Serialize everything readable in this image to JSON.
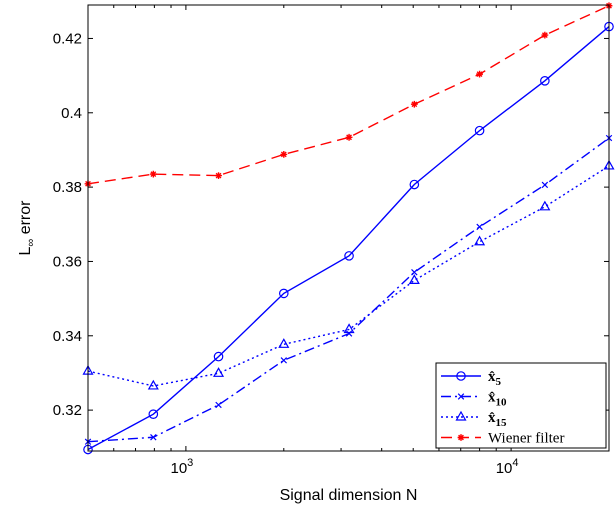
{
  "chart_data": {
    "type": "line",
    "xlabel": "Signal dimension N",
    "ylabel_main": "L",
    "ylabel_sub": "∞",
    "ylabel_rest": " error",
    "xscale": "log",
    "xlim": [
      500,
      20000
    ],
    "ylim": [
      0.309,
      0.429
    ],
    "x_ticks": [
      {
        "value": 1000,
        "base": "10",
        "exp": "3"
      },
      {
        "value": 10000,
        "base": "10",
        "exp": "4"
      }
    ],
    "y_ticks": [
      {
        "value": 0.32,
        "label": "0.32"
      },
      {
        "value": 0.34,
        "label": "0.34"
      },
      {
        "value": 0.36,
        "label": "0.36"
      },
      {
        "value": 0.38,
        "label": "0.38"
      },
      {
        "value": 0.4,
        "label": "0.4"
      },
      {
        "value": 0.42,
        "label": "0.42"
      }
    ],
    "grid": false,
    "legend_position": "bottom-right",
    "x": [
      500,
      794,
      1260,
      2000,
      3175,
      5040,
      8000,
      12700,
      20000
    ],
    "series": [
      {
        "name": "x̂5",
        "legend_base": "x",
        "legend_sub": "5",
        "color": "#0000ff",
        "dash": "solid",
        "marker": "circle",
        "values": [
          0.3094,
          0.3189,
          0.3344,
          0.3514,
          0.3615,
          0.3807,
          0.3952,
          0.4086,
          0.4232
        ]
      },
      {
        "name": "x̂10",
        "legend_base": "x",
        "legend_sub": "10",
        "color": "#0000ff",
        "dash": "dashdot",
        "marker": "x",
        "values": [
          0.3115,
          0.3127,
          0.3214,
          0.3334,
          0.3406,
          0.3571,
          0.3693,
          0.3806,
          0.3932
        ]
      },
      {
        "name": "x̂15",
        "legend_base": "x",
        "legend_sub": "15",
        "color": "#0000ff",
        "dash": "dotted",
        "marker": "triangle",
        "values": [
          0.3305,
          0.3265,
          0.3299,
          0.3377,
          0.3417,
          0.3549,
          0.3653,
          0.3747,
          0.3857
        ]
      },
      {
        "name": "Wiener filter",
        "legend_label": "Wiener filter",
        "color": "#ff0000",
        "dash": "dashed",
        "marker": "star",
        "values": [
          0.3809,
          0.3835,
          0.3831,
          0.3888,
          0.3934,
          0.4023,
          0.4104,
          0.4209,
          0.4288
        ]
      }
    ]
  }
}
